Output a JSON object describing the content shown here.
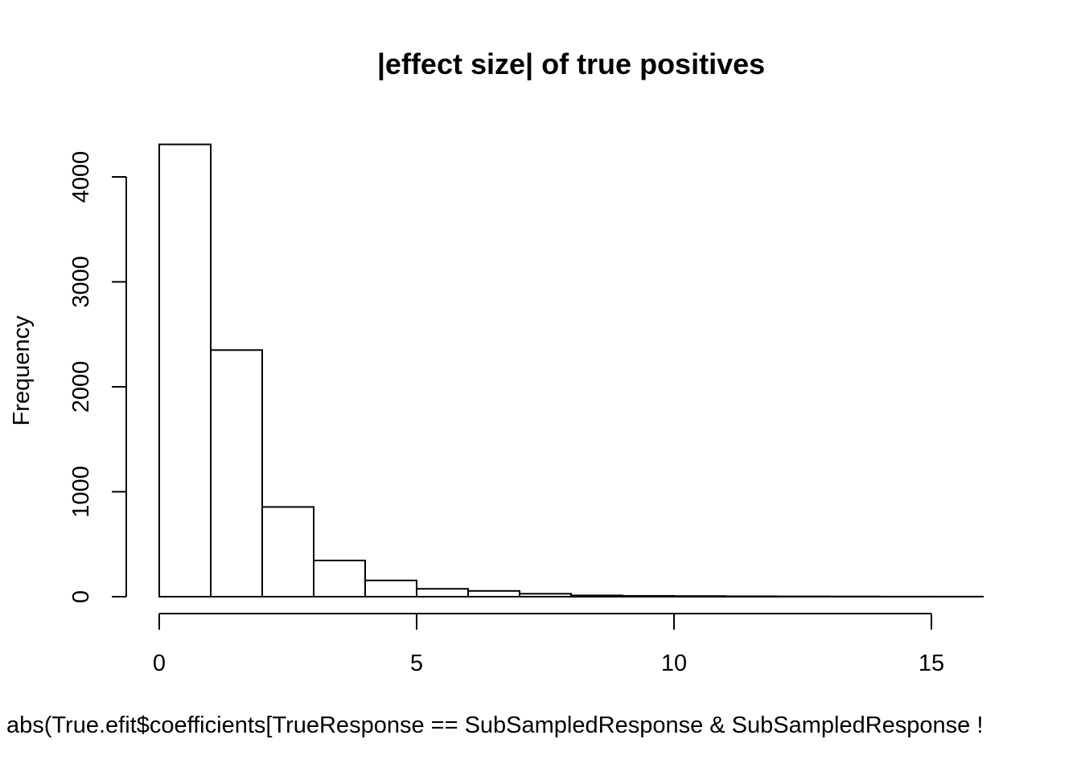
{
  "chart_data": {
    "type": "bar",
    "title": "|effect size| of true positives",
    "xlabel": "abs(True.efit$coefficients[TrueResponse == SubSampledResponse & SubSampledResponse !",
    "ylabel": "Frequency",
    "bin_width": 1,
    "bin_edges": [
      0,
      1,
      2,
      3,
      4,
      5,
      6,
      7,
      8,
      9,
      10,
      11,
      12,
      13,
      14,
      15,
      16
    ],
    "values": [
      4310,
      2350,
      855,
      345,
      155,
      75,
      55,
      28,
      12,
      8,
      6,
      4,
      3,
      2,
      1,
      1
    ],
    "xlim": [
      0,
      16
    ],
    "ylim": [
      0,
      4310
    ],
    "x_ticks": [
      0,
      5,
      10,
      15
    ],
    "x_tick_labels": [
      "0",
      "5",
      "10",
      "15"
    ],
    "y_ticks": [
      0,
      1000,
      2000,
      3000,
      4000
    ],
    "y_tick_labels": [
      "0",
      "1000",
      "2000",
      "3000",
      "4000"
    ],
    "grid": false,
    "legend": "none",
    "bar_fill": "#ffffff",
    "bar_stroke": "#000000"
  }
}
